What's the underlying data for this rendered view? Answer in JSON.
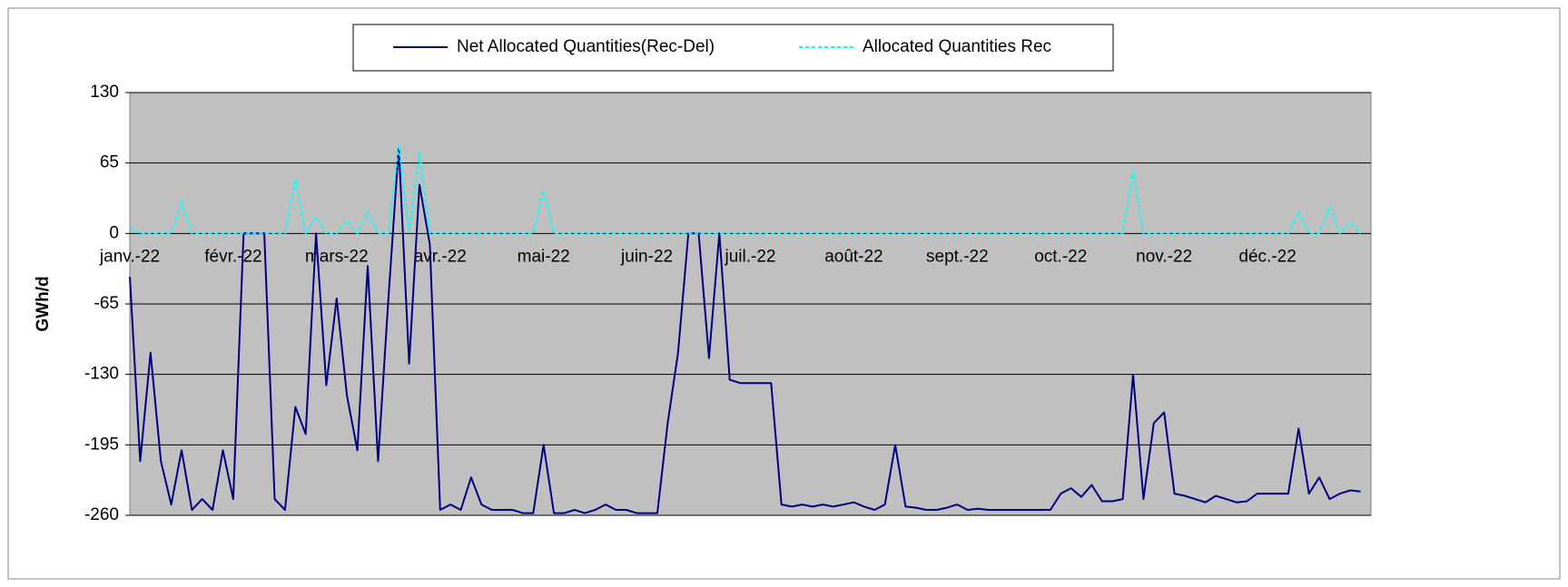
{
  "chart_data": {
    "type": "line",
    "y_label": "GWh/d",
    "categories": [
      "janv.-22",
      null,
      null,
      null,
      null,
      null,
      null,
      null,
      null,
      null,
      "févr.-22",
      null,
      null,
      null,
      null,
      null,
      null,
      null,
      null,
      null,
      "mars-22",
      null,
      null,
      null,
      null,
      null,
      null,
      null,
      null,
      null,
      "avr.-22",
      null,
      null,
      null,
      null,
      null,
      null,
      null,
      null,
      null,
      "mai-22",
      null,
      null,
      null,
      null,
      null,
      null,
      null,
      null,
      null,
      "juin-22",
      null,
      null,
      null,
      null,
      null,
      null,
      null,
      null,
      null,
      "juil.-22",
      null,
      null,
      null,
      null,
      null,
      null,
      null,
      null,
      null,
      "août-22",
      null,
      null,
      null,
      null,
      null,
      null,
      null,
      null,
      null,
      "sept.-22",
      null,
      null,
      null,
      null,
      null,
      null,
      null,
      null,
      null,
      "oct.-22",
      null,
      null,
      null,
      null,
      null,
      null,
      null,
      null,
      null,
      "nov.-22",
      null,
      null,
      null,
      null,
      null,
      null,
      null,
      null,
      null,
      "déc.-22",
      null,
      null,
      null,
      null,
      null,
      null,
      null,
      null,
      null
    ],
    "series": [
      {
        "name": "Net Allocated Quantities(Rec-Del)",
        "color": "#000080",
        "dash": false,
        "values": [
          -40,
          -210,
          -110,
          -210,
          -250,
          -200,
          -255,
          -245,
          -255,
          -200,
          -245,
          0,
          0,
          0,
          -245,
          -255,
          -160,
          -185,
          0,
          -140,
          -60,
          -150,
          -200,
          -30,
          -210,
          -60,
          80,
          -120,
          45,
          -10,
          -255,
          -250,
          -255,
          -225,
          -250,
          -255,
          -255,
          -255,
          -258,
          -258,
          -195,
          -258,
          -258,
          -255,
          -258,
          -255,
          -250,
          -255,
          -255,
          -258,
          -258,
          -258,
          -175,
          -110,
          0,
          0,
          -115,
          0,
          -135,
          -138,
          -138,
          -138,
          -138,
          -250,
          -252,
          -250,
          -252,
          -250,
          -252,
          -250,
          -248,
          -252,
          -255,
          -250,
          -195,
          -252,
          -253,
          -255,
          -255,
          -253,
          -250,
          -255,
          -254,
          -255,
          -255,
          -255,
          -255,
          -255,
          -255,
          -255,
          -240,
          -235,
          -243,
          -232,
          -247,
          -247,
          -245,
          -130,
          -245,
          -175,
          -165,
          -240,
          -242,
          -245,
          -248,
          -242,
          -245,
          -248,
          -247,
          -240,
          -240,
          -240,
          -240,
          -180,
          -240,
          -225,
          -245,
          -240,
          -237,
          -238
        ]
      },
      {
        "name": "Allocated Quantities Rec",
        "color": "#00ffff",
        "dash": true,
        "values": [
          5,
          0,
          0,
          0,
          0,
          30,
          0,
          0,
          0,
          0,
          0,
          0,
          0,
          0,
          0,
          0,
          50,
          0,
          15,
          0,
          0,
          12,
          0,
          20,
          0,
          0,
          82,
          0,
          75,
          0,
          0,
          0,
          0,
          0,
          0,
          0,
          0,
          0,
          0,
          0,
          40,
          0,
          0,
          0,
          0,
          0,
          0,
          0,
          0,
          0,
          0,
          0,
          0,
          0,
          0,
          0,
          0,
          0,
          0,
          0,
          0,
          0,
          0,
          0,
          0,
          0,
          0,
          0,
          0,
          0,
          0,
          0,
          0,
          0,
          0,
          0,
          0,
          0,
          0,
          0,
          0,
          0,
          0,
          0,
          0,
          0,
          0,
          0,
          0,
          0,
          0,
          0,
          0,
          0,
          0,
          0,
          0,
          58,
          0,
          0,
          0,
          0,
          0,
          0,
          0,
          0,
          0,
          0,
          0,
          0,
          0,
          0,
          0,
          20,
          0,
          0,
          25,
          0,
          10,
          0
        ]
      }
    ],
    "ylim": [
      -260,
      130
    ],
    "yticks": [
      130,
      65,
      0,
      -65,
      -130,
      -195,
      -260
    ],
    "grid": true
  }
}
